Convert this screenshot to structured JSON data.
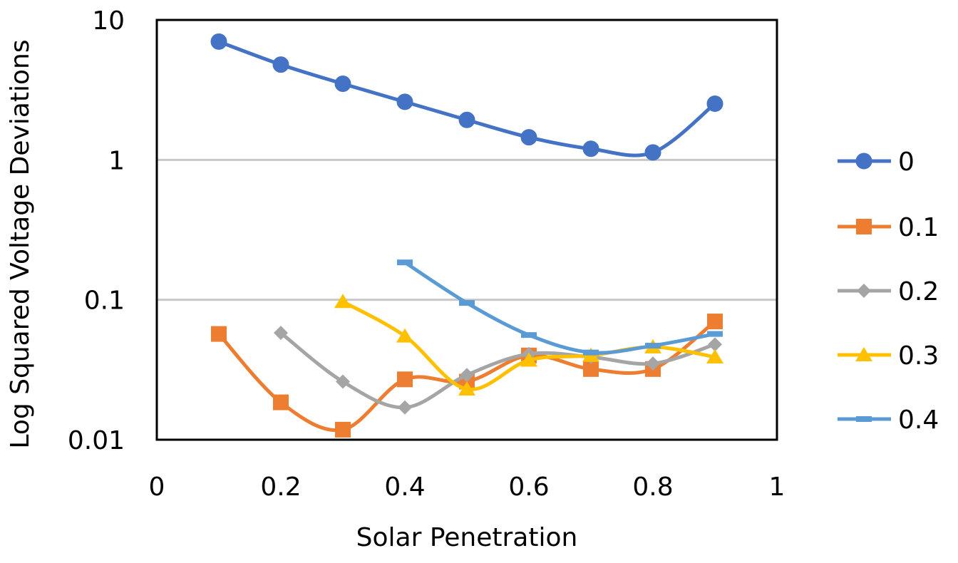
{
  "chart_data": {
    "type": "line",
    "title": "",
    "xlabel": "Solar Penetration",
    "ylabel": "Log Squared Voltage Deviations",
    "xlim": [
      0,
      1
    ],
    "ylim": [
      0.01,
      10
    ],
    "yscale": "log",
    "x_ticks": [
      "0",
      "0.2",
      "0.4",
      "0.6",
      "0.8",
      "1"
    ],
    "y_ticks": [
      "0.01",
      "0.1",
      "1",
      "10"
    ],
    "grid": "horizontal",
    "legend_position": "right",
    "smooth": true,
    "series": [
      {
        "name": "0",
        "color": "#4472C4",
        "marker": "circle",
        "x": [
          0.1,
          0.2,
          0.3,
          0.4,
          0.5,
          0.6,
          0.7,
          0.8,
          0.9
        ],
        "y": [
          7.0,
          4.8,
          3.5,
          2.6,
          1.93,
          1.45,
          1.2,
          1.13,
          2.52
        ]
      },
      {
        "name": "0.1",
        "color": "#ED7D31",
        "marker": "square",
        "x": [
          0.1,
          0.2,
          0.3,
          0.4,
          0.5,
          0.6,
          0.7,
          0.8,
          0.9
        ],
        "y": [
          0.057,
          0.0185,
          0.0118,
          0.027,
          0.026,
          0.04,
          0.032,
          0.032,
          0.07
        ]
      },
      {
        "name": "0.2",
        "color": "#A5A5A5",
        "marker": "diamond",
        "x": [
          0.2,
          0.3,
          0.4,
          0.5,
          0.6,
          0.7,
          0.8,
          0.9
        ],
        "y": [
          0.058,
          0.026,
          0.017,
          0.029,
          0.041,
          0.039,
          0.035,
          0.048
        ]
      },
      {
        "name": "0.3",
        "color": "#FFC000",
        "marker": "triangle",
        "x": [
          0.3,
          0.4,
          0.5,
          0.6,
          0.7,
          0.8,
          0.9
        ],
        "y": [
          0.097,
          0.055,
          0.023,
          0.037,
          0.04,
          0.046,
          0.039
        ]
      },
      {
        "name": "0.4",
        "color": "#5B9BD5",
        "marker": "dash",
        "x": [
          0.4,
          0.5,
          0.6,
          0.7,
          0.8,
          0.9
        ],
        "y": [
          0.185,
          0.095,
          0.056,
          0.042,
          0.047,
          0.057
        ]
      }
    ]
  }
}
